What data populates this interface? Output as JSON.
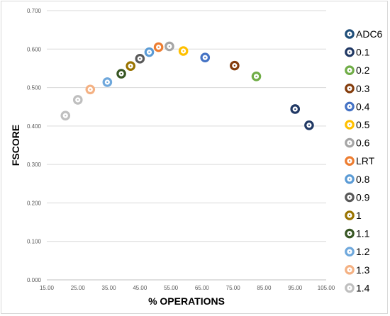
{
  "chart_data": {
    "type": "scatter",
    "title": "",
    "xlabel": "% OPERATIONS",
    "ylabel": "FSCORE",
    "xlim": [
      15.0,
      105.0
    ],
    "ylim": [
      0.0,
      0.7
    ],
    "x_ticks": [
      "15.00",
      "25.00",
      "35.00",
      "45.00",
      "55.00",
      "65.00",
      "75.00",
      "85.00",
      "95.00",
      "105.00"
    ],
    "y_ticks": [
      "0.000",
      "0.100",
      "0.200",
      "0.300",
      "0.400",
      "0.500",
      "0.600",
      "0.700"
    ],
    "grid": "horizontal",
    "legend_position": "right",
    "marker": "ring",
    "series": [
      {
        "name": "ADC6",
        "color": "#1f4e79",
        "points": []
      },
      {
        "name": "0.1",
        "color": "#203864",
        "points": [
          [
            95.0,
            0.444
          ],
          [
            99.5,
            0.402
          ]
        ]
      },
      {
        "name": "0.2",
        "color": "#70ad47",
        "points": [
          [
            82.5,
            0.529
          ]
        ]
      },
      {
        "name": "0.3",
        "color": "#843c0c",
        "points": [
          [
            75.5,
            0.557
          ]
        ]
      },
      {
        "name": "0.4",
        "color": "#4472c4",
        "points": [
          [
            66.0,
            0.578
          ]
        ]
      },
      {
        "name": "0.5",
        "color": "#ffc000",
        "points": [
          [
            59.0,
            0.595
          ]
        ]
      },
      {
        "name": "0.6",
        "color": "#a5a5a5",
        "points": [
          [
            54.5,
            0.607
          ]
        ]
      },
      {
        "name": "LRT",
        "color": "#ed7d31",
        "points": [
          [
            51.0,
            0.605
          ]
        ]
      },
      {
        "name": "0.8",
        "color": "#5b9bd5",
        "points": [
          [
            48.0,
            0.592
          ]
        ]
      },
      {
        "name": "0.9",
        "color": "#595959",
        "points": [
          [
            45.0,
            0.575
          ]
        ]
      },
      {
        "name": "1",
        "color": "#997300",
        "points": [
          [
            42.0,
            0.556
          ]
        ]
      },
      {
        "name": "1.1",
        "color": "#375623",
        "points": [
          [
            39.0,
            0.536
          ]
        ]
      },
      {
        "name": "1.2",
        "color": "#6fa8dc",
        "points": [
          [
            34.5,
            0.514
          ]
        ]
      },
      {
        "name": "1.3",
        "color": "#f4b183",
        "points": [
          [
            29.0,
            0.495
          ]
        ]
      },
      {
        "name": "1.4",
        "color": "#bfbfbf",
        "points": [
          [
            25.0,
            0.468
          ],
          [
            21.0,
            0.427
          ]
        ]
      }
    ]
  }
}
